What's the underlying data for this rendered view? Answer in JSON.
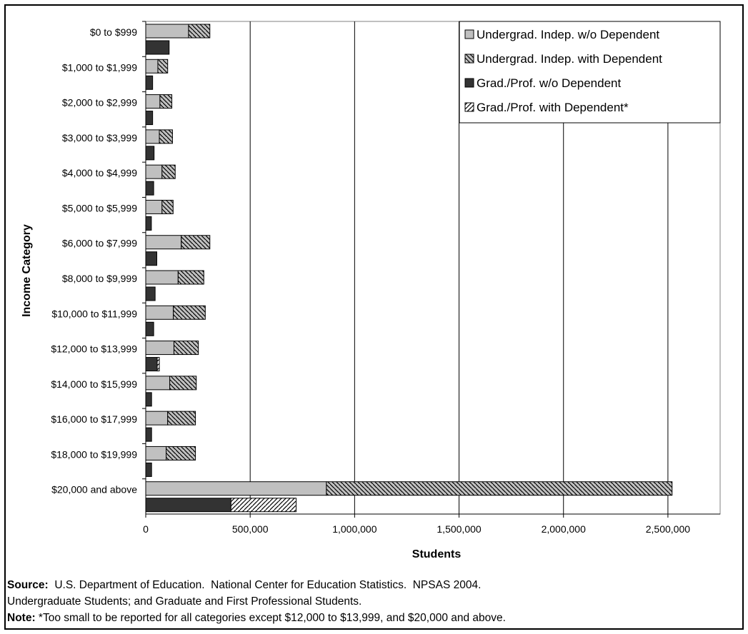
{
  "chart_data": {
    "type": "bar",
    "orientation": "horizontal",
    "stacked": true,
    "categories": [
      "$0 to $999",
      "$1,000 to $1,999",
      "$2,000 to $2,999",
      "$3,000 to $3,999",
      "$4,000 to $4,999",
      "$5,000 to $5,999",
      "$6,000 to $7,999",
      "$8,000 to $9,999",
      "$10,000 to $11,999",
      "$12,000 to $13,999",
      "$14,000 to $15,999",
      "$16,000 to $17,999",
      "$18,000 to $19,999",
      "$20,000 and above"
    ],
    "groups": [
      {
        "stack": [
          "Undergrad. Indep. w/o Dependent",
          "Undergrad. Indep. with Dependent"
        ],
        "series": [
          {
            "name": "Undergrad. Indep. w/o Dependent",
            "color": "#c0c0c0",
            "pattern": "solid",
            "values": [
              205000,
              58000,
              68000,
              65000,
              78000,
              78000,
              170000,
              155000,
              132000,
              135000,
              115000,
              105000,
              98000,
              865000
            ]
          },
          {
            "name": "Undergrad. Indep. with Dependent",
            "color": "#c0c0c0",
            "pattern": "hatch-down",
            "values": [
              102000,
              47000,
              57000,
              63000,
              63000,
              53000,
              137000,
              123000,
              153000,
              117000,
              127000,
              133000,
              140000,
              1655000
            ]
          }
        ]
      },
      {
        "stack": [
          "Grad./Prof. w/o Dependent",
          "Grad./Prof. with Dependent*"
        ],
        "series": [
          {
            "name": "Grad./Prof. w/o Dependent",
            "color": "#333333",
            "pattern": "solid",
            "values": [
              112000,
              33000,
              33000,
              40000,
              38000,
              27000,
              53000,
              45000,
              38000,
              55000,
              28000,
              28000,
              28000,
              408000
            ]
          },
          {
            "name": "Grad./Prof. with Dependent*",
            "color": "#ffffff",
            "pattern": "hatch-up",
            "values": [
              0,
              0,
              0,
              0,
              0,
              0,
              0,
              0,
              0,
              10000,
              0,
              0,
              0,
              312000
            ]
          }
        ]
      }
    ],
    "x_ticks": [
      "0",
      "500,000",
      "1,000,000",
      "1,500,000",
      "2,000,000",
      "2,500,000"
    ],
    "xlim": [
      0,
      2750000
    ],
    "xlabel": "Students",
    "ylabel": "Income Category",
    "title": "",
    "grid": "vertical",
    "legend_position": "top-right"
  },
  "notes": {
    "source_label": "Source:",
    "source_text": "  U.S. Department of Education.  National Center for Education Statistics.  NPSAS 2004.",
    "source_text2": "Undergraduate Students; and Graduate and First Professional Students.",
    "note_label": "Note:",
    "note_text": " *Too small to be reported for all categories except $12,000 to $13,999, and $20,000 and above."
  }
}
